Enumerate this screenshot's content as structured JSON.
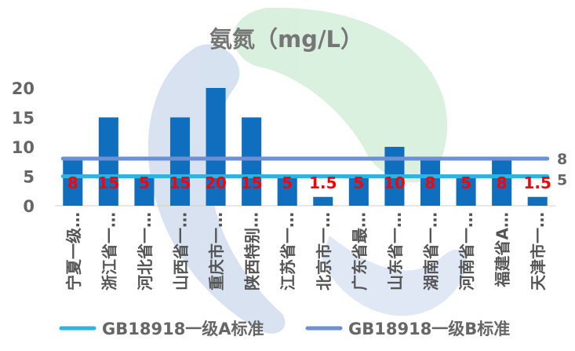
{
  "chart_data": {
    "type": "bar",
    "title": "氨氮（mg/L）",
    "categories": [
      "宁夏一级…",
      "浙江省一…",
      "河北省一…",
      "山西省一…",
      "重庆市一…",
      "陕西特别…",
      "江苏省一…",
      "北京市一…",
      "广东省最…",
      "山东省一…",
      "湖南省一…",
      "河南省一…",
      "福建省A…",
      "天津市一…"
    ],
    "series": [
      {
        "values": [
          8,
          15,
          5,
          15,
          20,
          15,
          5,
          1.5,
          5,
          10,
          8,
          5,
          8,
          1.5
        ],
        "color": "#0F6FBE"
      }
    ],
    "data_labels": [
      "8",
      "15",
      "5",
      "15",
      "20",
      "15",
      "5",
      "1.5",
      "5",
      "10",
      "8",
      "5",
      "8",
      "1.5"
    ],
    "data_label_color": "#FF0000",
    "reference_lines": [
      {
        "name": "GB18918一级A标准",
        "value": 5,
        "label": "5",
        "color": "#2EB4DE"
      },
      {
        "name": "GB18918一级B标准",
        "value": 8,
        "label": "8",
        "color": "#6D8FD3"
      }
    ],
    "y_ticks": [
      "0",
      "5",
      "10",
      "15",
      "20"
    ],
    "ylim": [
      0,
      20
    ],
    "legend_position": "bottom",
    "grid": false
  }
}
